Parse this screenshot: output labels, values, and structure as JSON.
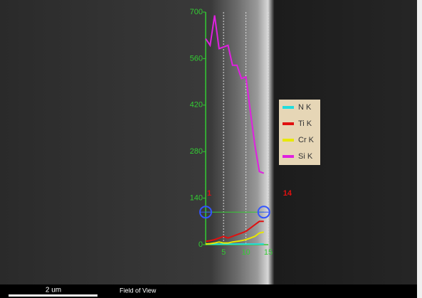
{
  "chart_data": {
    "type": "line",
    "x": [
      1,
      2,
      3,
      4,
      5,
      6,
      7,
      8,
      9,
      10,
      11,
      12,
      13,
      14
    ],
    "series": [
      {
        "name": "N  K",
        "color": "#22dddd",
        "values": [
          2,
          2,
          2,
          2,
          2,
          2,
          2,
          2,
          2,
          2,
          2,
          2,
          2,
          2
        ]
      },
      {
        "name": "Ti K",
        "color": "#e01010",
        "values": [
          10,
          12,
          15,
          20,
          25,
          20,
          25,
          30,
          35,
          40,
          50,
          60,
          70,
          70
        ]
      },
      {
        "name": "Cr K",
        "color": "#e8e800",
        "values": [
          2,
          3,
          5,
          8,
          5,
          5,
          8,
          10,
          12,
          15,
          20,
          25,
          35,
          38
        ]
      },
      {
        "name": "Si K",
        "color": "#e020e0",
        "values": [
          620,
          600,
          690,
          590,
          595,
          600,
          540,
          540,
          500,
          505,
          400,
          300,
          220,
          215
        ]
      }
    ],
    "xlim": [
      1,
      15
    ],
    "xticks": [
      5,
      10,
      15
    ],
    "ylim": [
      0,
      700
    ],
    "yticks": [
      0,
      140,
      280,
      420,
      560,
      700
    ],
    "grid": true,
    "legend": "right",
    "cursor": {
      "x": [
        1,
        14
      ],
      "y": 98
    },
    "scale_bar_label": "2 um",
    "footer_label": "Field of View"
  }
}
